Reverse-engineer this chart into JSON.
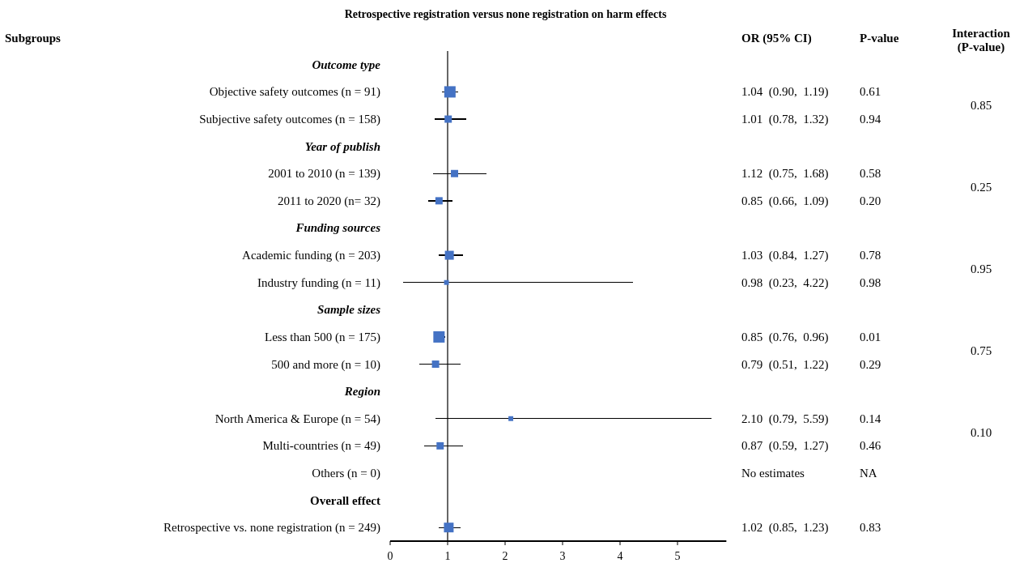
{
  "chart_data": {
    "type": "bubble",
    "title": "Retrospective registration versus none registration on harm effects",
    "marker": "square",
    "orientation": "horizontal",
    "color": "#4472c4",
    "categories": [
      "Outcome type",
      "Objective safety outcomes (n = 91)",
      "Subjective safety outcomes (n = 158)",
      "Year of publish",
      "2001 to 2010 (n = 139)",
      "2011 to 2020 (n= 32)",
      "Funding sources",
      "Academic funding (n = 203)",
      "Industry funding (n = 11)",
      "Sample sizes",
      "Less than 500 (n = 175)",
      "500 and more (n = 10)",
      "Region",
      "North America & Europe (n = 54)",
      "Multi-countries (n = 49)",
      "Others (n = 0)",
      "Overall effect",
      "Retrospective vs. none registration  (n = 249)"
    ],
    "values": [
      null,
      1.04,
      1.01,
      null,
      1.12,
      0.85,
      null,
      1.03,
      0.98,
      null,
      0.85,
      0.79,
      null,
      2.1,
      0.87,
      null,
      null,
      1.02
    ],
    "errors": [
      null,
      [
        0.9,
        1.19
      ],
      [
        0.78,
        1.32
      ],
      null,
      [
        0.75,
        1.68
      ],
      [
        0.66,
        1.09
      ],
      null,
      [
        0.84,
        1.27
      ],
      [
        0.23,
        4.22
      ],
      null,
      [
        0.76,
        0.96
      ],
      [
        0.51,
        1.22
      ],
      null,
      [
        0.79,
        5.59
      ],
      [
        0.59,
        1.27
      ],
      null,
      null,
      [
        0.85,
        1.23
      ]
    ],
    "sizes": [
      null,
      1,
      0.41,
      null,
      0.41,
      0.41,
      null,
      0.62,
      0.18,
      null,
      1,
      0.41,
      null,
      0.18,
      0.41,
      null,
      null,
      0.73
    ],
    "value_labels": [
      null,
      "1.04  (0.90,  1.19)",
      "1.01  (0.78,  1.32)",
      null,
      "1.12  (0.75,  1.68)",
      "0.85  (0.66,  1.09)",
      null,
      "1.03  (0.84,  1.27)",
      "0.98  (0.23,  4.22)",
      null,
      "0.85  (0.76,  0.96)",
      "0.79  (0.51,  1.22)",
      null,
      "2.10  (0.79,  5.59)",
      "0.87  (0.59,  1.27)",
      "No estimates",
      null,
      "1.02  (0.85,  1.23)"
    ],
    "annotations": [
      "Subgroups",
      "OR (95% CI)",
      "P-value",
      "Interaction (P-value)",
      "0.61",
      "0.94",
      "0.58",
      "0.20",
      "0.78",
      "0.98",
      "0.01",
      "0.29",
      "0.14",
      "0.46",
      "NA",
      "0.83",
      "0.85",
      "0.25",
      "0.95",
      "0.75",
      "0.10"
    ],
    "xlim": [
      0,
      5.85
    ],
    "xticks": [
      0,
      1,
      2,
      3,
      4,
      5
    ],
    "ref_lines": [
      {
        "axis": "x",
        "value": 1,
        "color": "#000000"
      }
    ]
  }
}
